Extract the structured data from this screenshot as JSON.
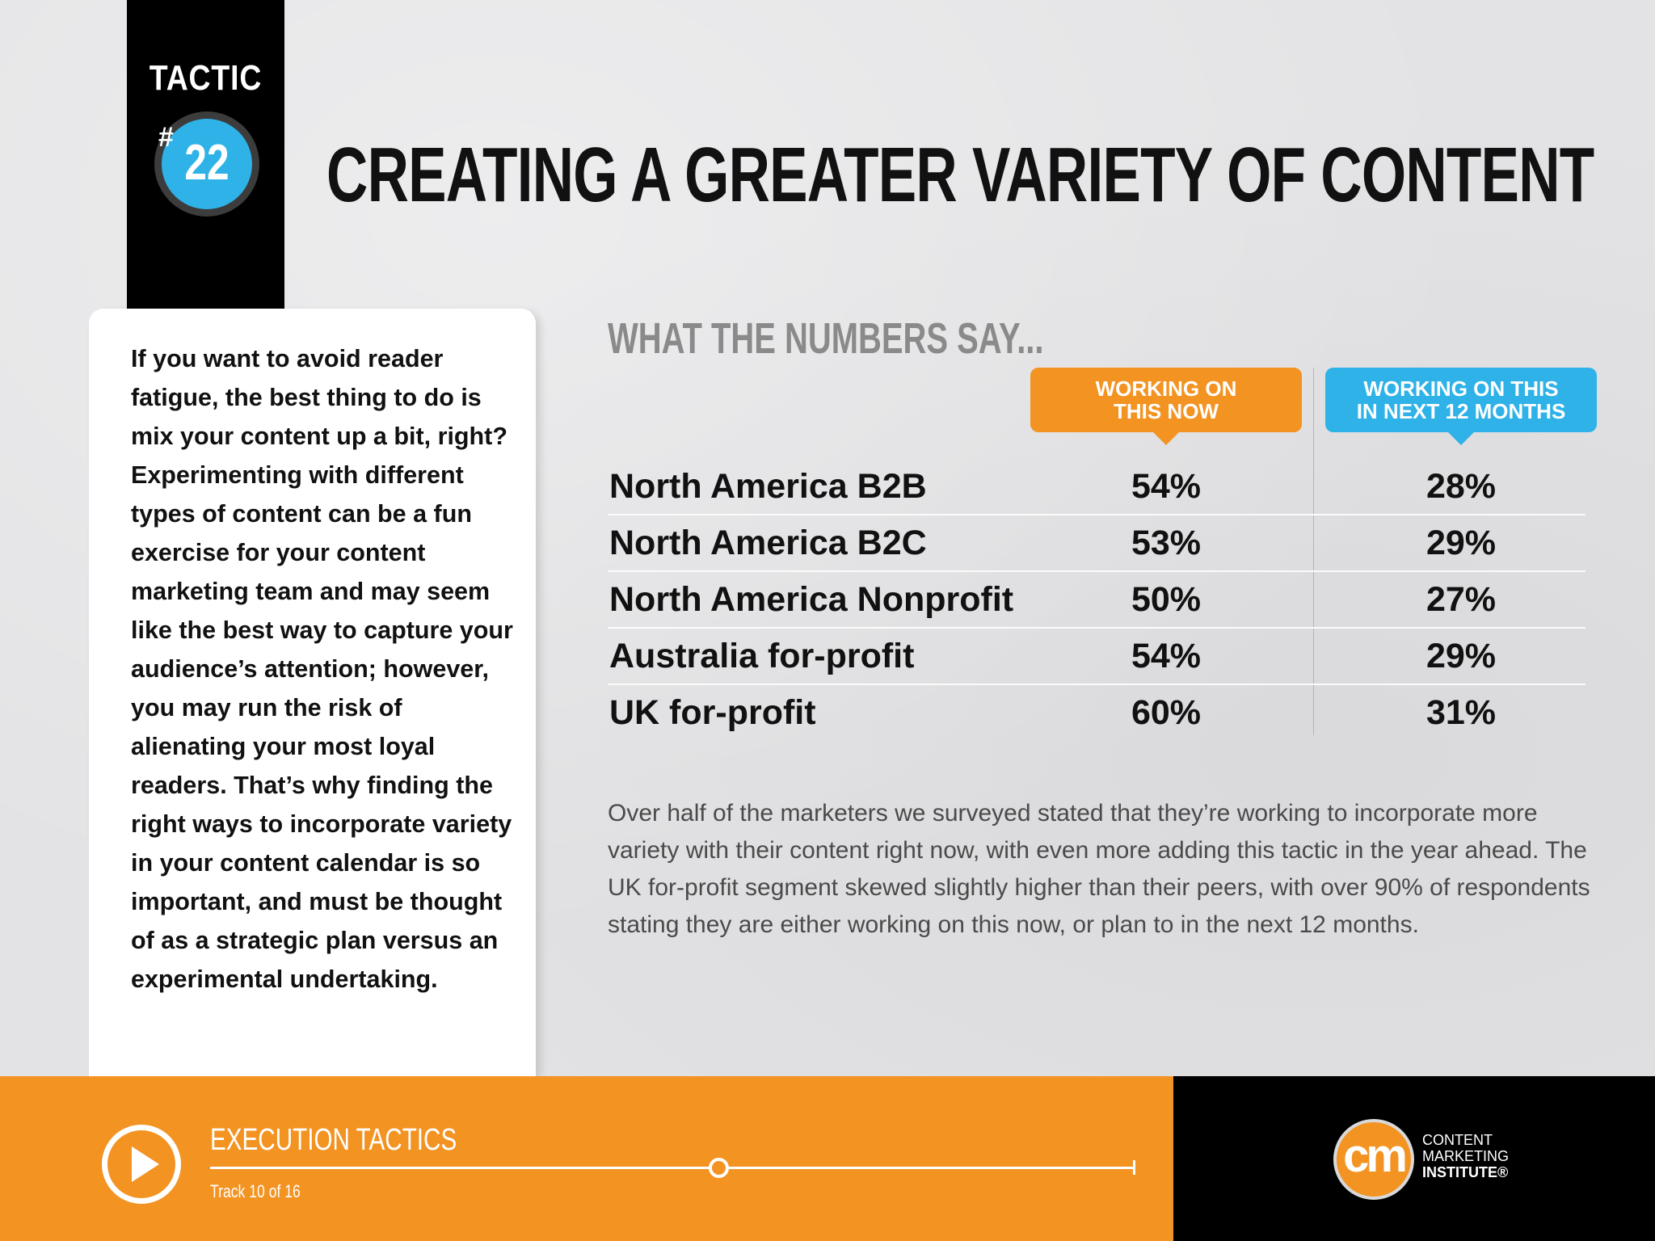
{
  "tactic": {
    "label": "TACTIC",
    "hash": "#",
    "number": "22"
  },
  "title": "CREATING A GREATER VARIETY OF CONTENT",
  "intro": "If you want to avoid reader fatigue, the best thing to do is mix your content up a bit, right? Experimenting with different types of content can be a fun exercise for your content marketing team and may seem like the best way to capture your audience’s attention; however, you may run the risk of alienating your most loyal readers. That’s why finding the right ways to incorporate variety in your content calendar is so important, and must be thought of as a strategic plan versus an experimental undertaking.",
  "numbers": {
    "heading": "WHAT THE NUMBERS SAY...",
    "col_now": [
      "WORKING ON",
      "THIS NOW"
    ],
    "col_next": [
      "WORKING ON THIS",
      "IN NEXT 12 MONTHS"
    ],
    "rows": [
      {
        "label": "North America B2B",
        "now": "54%",
        "next": "28%"
      },
      {
        "label": "North America B2C",
        "now": "53%",
        "next": "29%"
      },
      {
        "label": "North America Nonprofit",
        "now": "50%",
        "next": "27%"
      },
      {
        "label": "Australia for-profit",
        "now": "54%",
        "next": "29%"
      },
      {
        "label": "UK for-profit",
        "now": "60%",
        "next": "31%"
      }
    ]
  },
  "summary": "Over half of the marketers we surveyed stated that they’re working to incorporate more variety with their content right now, with even more adding this tactic in the year ahead. The UK for-profit segment skewed slightly higher than their peers, with over 90% of respondents stating they are either working on this now, or plan to in the next 12 months.",
  "footer": {
    "section": "EXECUTION TACTICS",
    "track": "Track 10 of 16",
    "track_progress": 0.55,
    "logo_text": "cm",
    "brand_lines": [
      "CONTENT",
      "MARKETING",
      "INSTITUTE®"
    ],
    "icons": {
      "play": "play-icon"
    }
  },
  "colors": {
    "orange": "#f39322",
    "blue": "#2eb2e8",
    "black": "#000000"
  }
}
